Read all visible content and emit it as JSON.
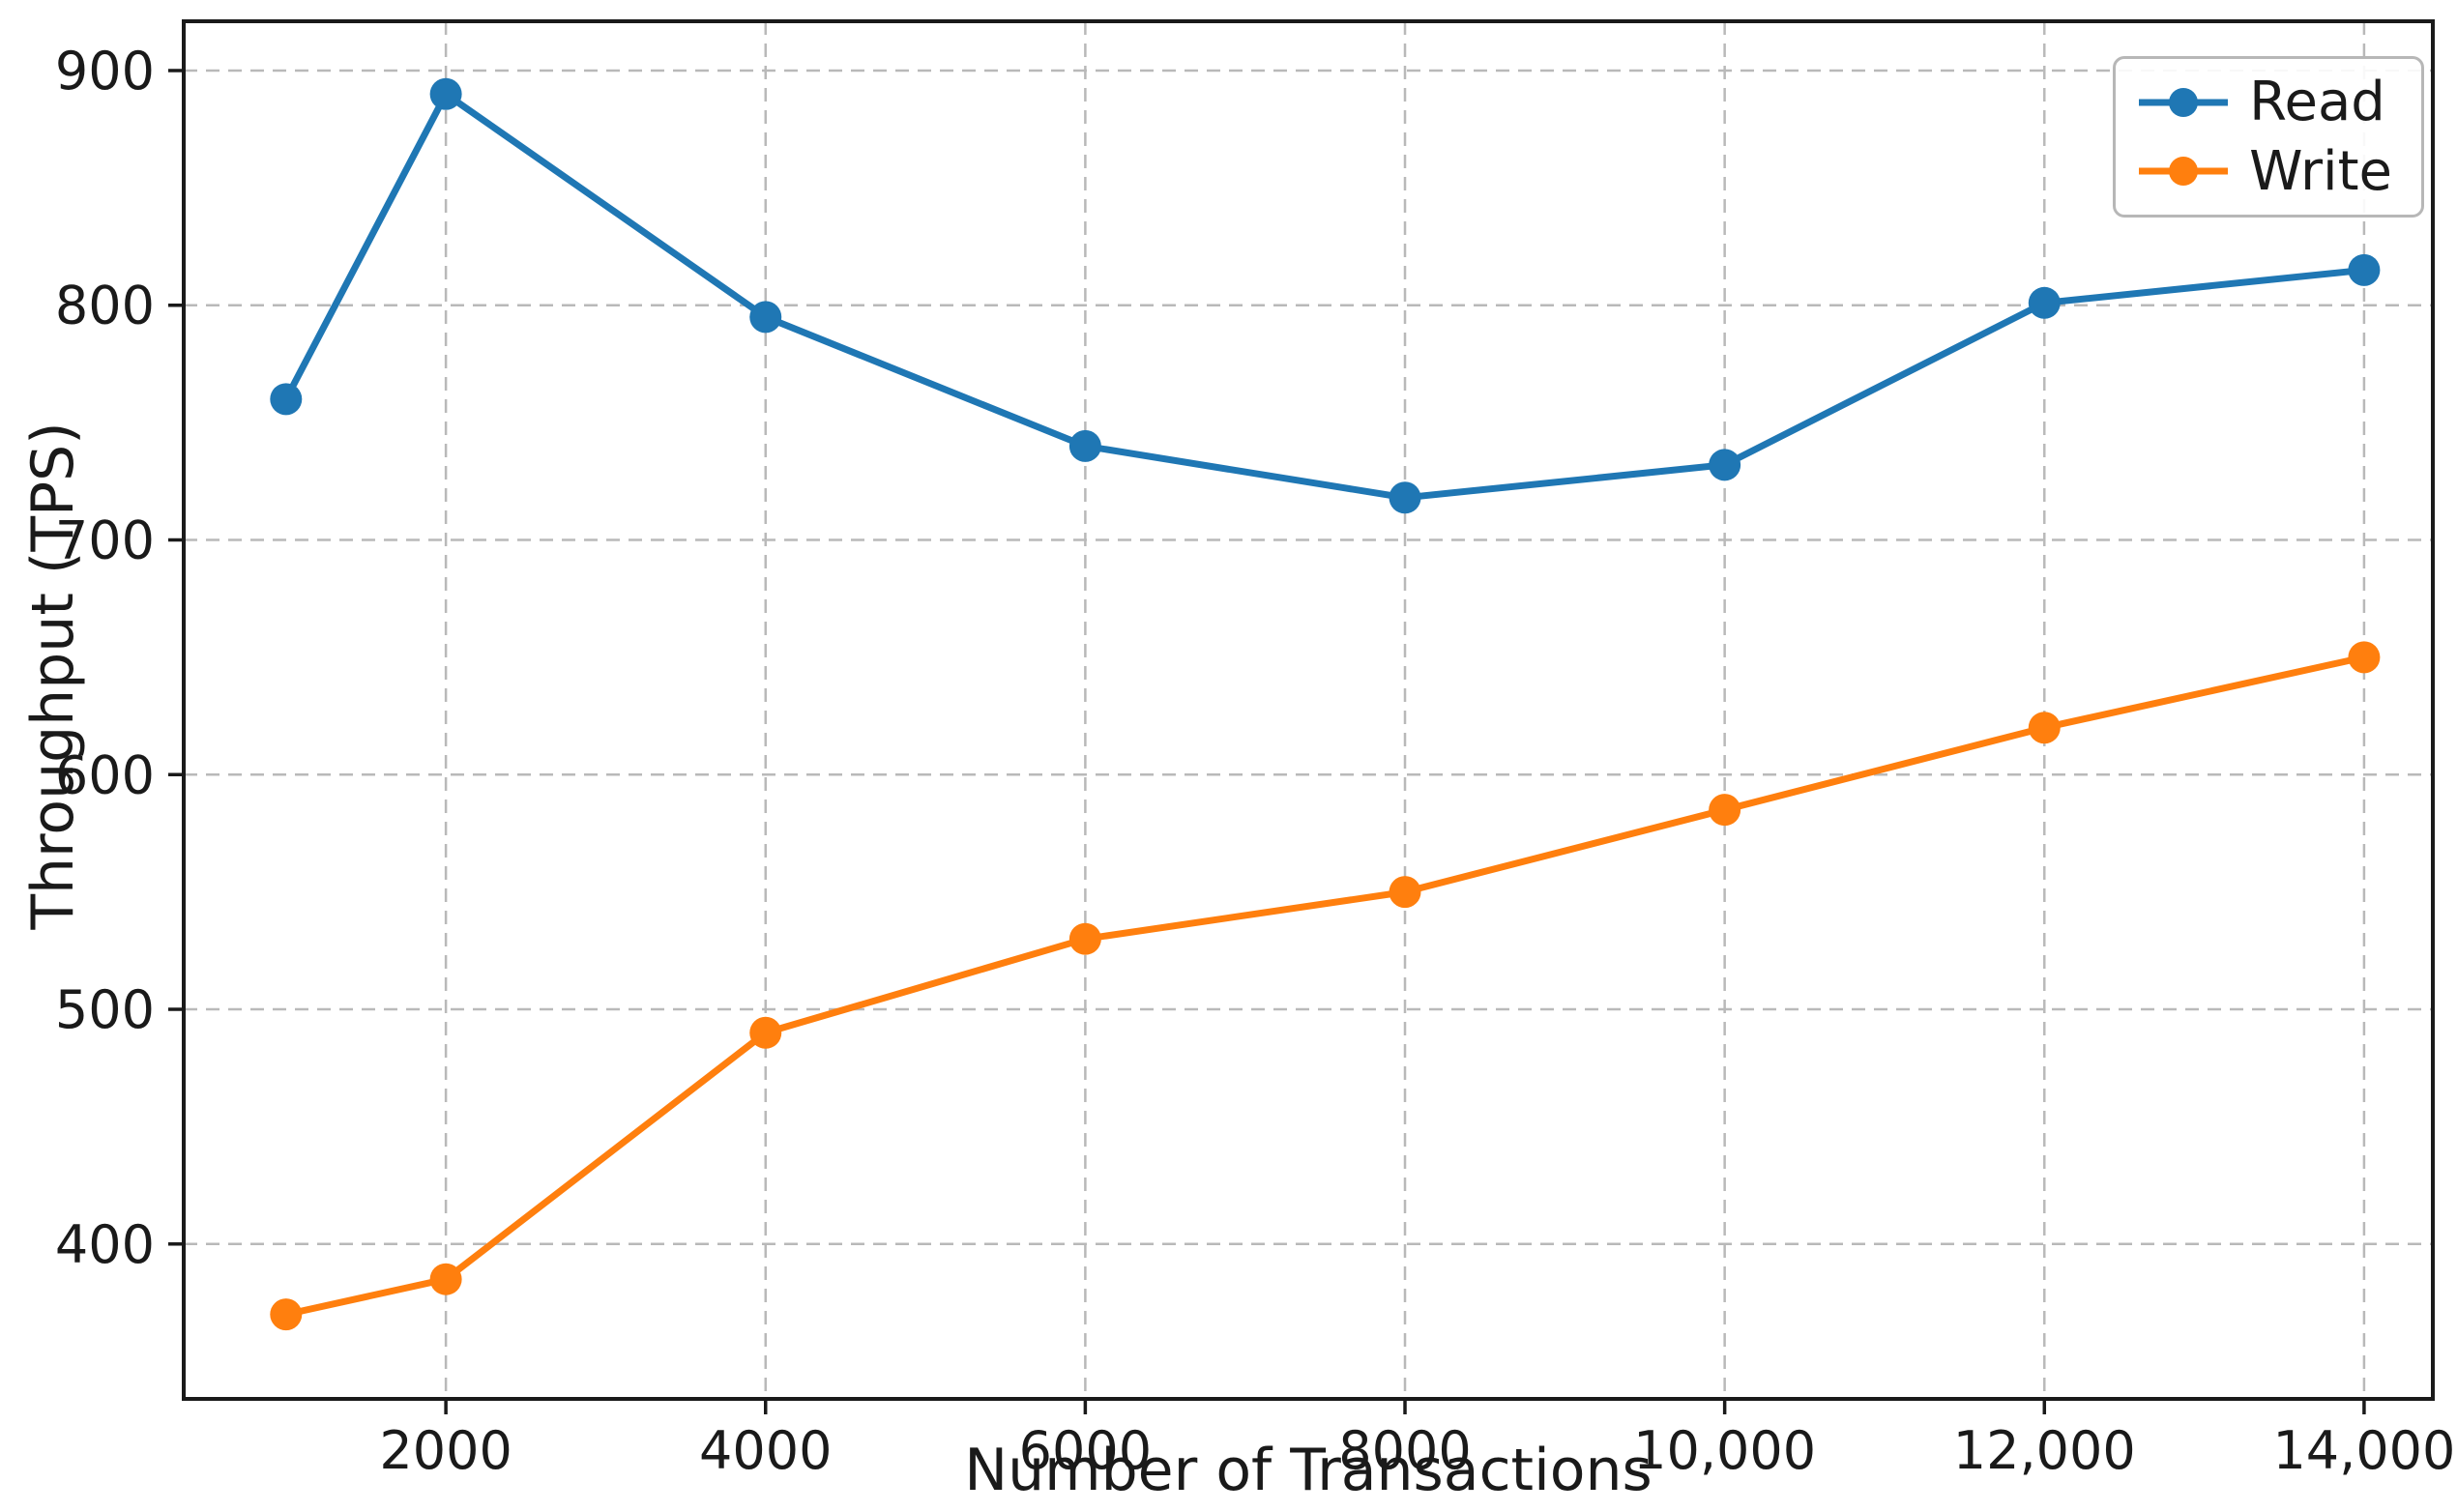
{
  "chart_data": {
    "type": "line",
    "title": "",
    "xlabel": "Number of Transactions",
    "ylabel": "Throughput (TPS)",
    "x": [
      1000,
      2000,
      4000,
      6000,
      8000,
      10000,
      12000,
      14000
    ],
    "series": [
      {
        "name": "Read",
        "color": "#1f77b4",
        "values": [
          760,
          890,
          795,
          740,
          718,
          732,
          801,
          815
        ]
      },
      {
        "name": "Write",
        "color": "#ff7f0e",
        "values": [
          370,
          385,
          490,
          530,
          550,
          585,
          620,
          650
        ]
      }
    ],
    "xlim": [
      360,
      14430
    ],
    "ylim": [
      334,
      921
    ],
    "xticks": [
      2000,
      4000,
      6000,
      8000,
      10000,
      12000,
      14000
    ],
    "xtick_labels": [
      "2000",
      "4000",
      "6000",
      "8000",
      "10,000",
      "12,000",
      "14,000"
    ],
    "yticks": [
      400,
      500,
      600,
      700,
      800,
      900
    ],
    "ytick_labels": [
      "400",
      "500",
      "600",
      "700",
      "800",
      "900"
    ],
    "grid": true,
    "grid_style": "dashed",
    "grid_color": "#b9b9b9",
    "spine_color": "#1a1a1a",
    "tick_label_color": "#1a1a1a",
    "legend_position": "upper right",
    "marker": "circle",
    "background": "#ffffff"
  }
}
